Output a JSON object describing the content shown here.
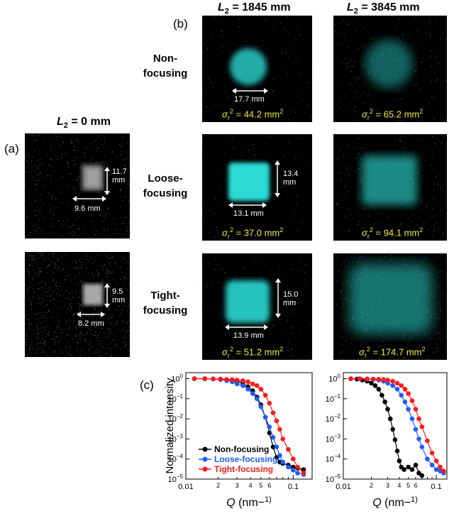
{
  "labels": {
    "a": "(a)",
    "b": "(b)",
    "c": "(c)"
  },
  "headers": {
    "l0": {
      "var": "L",
      "sub": "2",
      "rest": " = 0 mm"
    },
    "l1845": {
      "var": "L",
      "sub": "2",
      "rest": " = 1845 mm"
    },
    "l3845": {
      "var": "L",
      "sub": "2",
      "rest": " = 3845 mm"
    }
  },
  "rows": [
    {
      "line1": "Non-",
      "line2": "focusing"
    },
    {
      "line1": "Loose-",
      "line2": "focusing"
    },
    {
      "line1": "Tight-",
      "line2": "focusing"
    }
  ],
  "panel_a": {
    "loose": {
      "v1": "11.7",
      "v2": "mm",
      "h": "9.6 mm"
    },
    "tight": {
      "v1": "9.5",
      "v2": "mm",
      "h": "8.2 mm"
    }
  },
  "panel_b": {
    "non_1845": {
      "h": "17.7 mm",
      "sigma": "44.2 mm"
    },
    "non_3845": {
      "sigma": "65.2 mm"
    },
    "loose_1845": {
      "v1": "13.4",
      "v2": "mm",
      "h": "13.1 mm",
      "sigma": "37.0 mm"
    },
    "loose_3845": {
      "sigma": "94.1 mm"
    },
    "tight_1845": {
      "v1": "15.0",
      "v2": "mm",
      "h": "13.9 mm",
      "sigma": "51.2 mm"
    },
    "tight_3845": {
      "sigma": "174.7 mm"
    },
    "sigma_symbol": "σ",
    "sigma_sub": "r",
    "sigma_sup": "2",
    "sigma_eq": " = ",
    "sigma_unit_sup": "2"
  },
  "colors": {
    "beam_cyan": "#2fe6e0",
    "beam_white": "#e6e6e6",
    "sigma_text": "#f0ea3c",
    "non": "#000000",
    "loose": "#1f5cff",
    "tight": "#ff1a1a"
  },
  "chart_data": [
    {
      "type": "line",
      "panel": "left",
      "ylabel": "Normalized intensity",
      "xlabel": "Q (nm−1)",
      "xscale": "log",
      "yscale": "log",
      "xlim": [
        0.01,
        0.15
      ],
      "ylim": [
        1e-05,
        2
      ],
      "x_ticks": [
        "0.01",
        "2",
        "3",
        "4",
        "5",
        "6",
        "0.1"
      ],
      "y_ticks": [
        "10−5",
        "10−4",
        "10−3",
        "10−2",
        "10−1",
        "100"
      ],
      "series": [
        {
          "name": "Non-focusing",
          "color": "#000000",
          "x": [
            0.012,
            0.015,
            0.018,
            0.021,
            0.024,
            0.027,
            0.03,
            0.034,
            0.038,
            0.042,
            0.046,
            0.05,
            0.055,
            0.06,
            0.065,
            0.07,
            0.075,
            0.08,
            0.09,
            0.1,
            0.11,
            0.125
          ],
          "y": [
            1.0,
            1.0,
            0.98,
            0.95,
            0.9,
            0.85,
            0.75,
            0.6,
            0.4,
            0.25,
            0.12,
            0.05,
            0.012,
            0.002,
            0.0004,
            0.00012,
            7e-05,
            6e-05,
            5e-05,
            4e-05,
            3.5e-05,
            3e-05
          ]
        },
        {
          "name": "Loose-focusing",
          "color": "#1f5cff",
          "x": [
            0.012,
            0.015,
            0.018,
            0.021,
            0.024,
            0.027,
            0.03,
            0.034,
            0.038,
            0.042,
            0.046,
            0.05,
            0.055,
            0.06,
            0.065,
            0.07,
            0.075,
            0.08,
            0.09,
            0.1,
            0.11,
            0.125
          ],
          "y": [
            1.0,
            0.98,
            0.95,
            0.9,
            0.8,
            0.7,
            0.55,
            0.45,
            0.3,
            0.18,
            0.1,
            0.04,
            0.012,
            0.004,
            0.0012,
            0.0004,
            0.00015,
            7e-05,
            4e-05,
            2.8e-05,
            2e-05,
            1.7e-05
          ]
        },
        {
          "name": "Tight-focusing",
          "color": "#ff1a1a",
          "x": [
            0.012,
            0.015,
            0.018,
            0.021,
            0.024,
            0.027,
            0.03,
            0.034,
            0.038,
            0.042,
            0.046,
            0.05,
            0.055,
            0.06,
            0.065,
            0.07,
            0.075,
            0.08,
            0.09,
            0.1,
            0.11,
            0.125
          ],
          "y": [
            1.0,
            1.0,
            0.98,
            0.95,
            0.92,
            0.9,
            0.85,
            0.8,
            0.7,
            0.55,
            0.45,
            0.3,
            0.15,
            0.06,
            0.02,
            0.008,
            0.003,
            0.001,
            0.0003,
            0.0001,
            4e-05,
            2e-05
          ]
        }
      ]
    },
    {
      "type": "line",
      "panel": "right",
      "xlabel": "Q (nm−1)",
      "xscale": "log",
      "yscale": "log",
      "xlim": [
        0.01,
        0.13
      ],
      "ylim": [
        1e-05,
        2
      ],
      "x_ticks": [
        "0.01",
        "2",
        "3",
        "4",
        "5",
        "6",
        "0.1"
      ],
      "y_ticks": [
        "10−5",
        "10−4",
        "10−3",
        "10−2",
        "10−1",
        "100"
      ],
      "series": [
        {
          "name": "Non-focusing",
          "color": "#000000",
          "x": [
            0.012,
            0.014,
            0.016,
            0.018,
            0.02,
            0.022,
            0.024,
            0.026,
            0.028,
            0.03,
            0.032,
            0.034,
            0.036,
            0.038,
            0.04,
            0.042,
            0.045,
            0.05,
            0.055,
            0.06,
            0.065,
            0.07
          ],
          "y": [
            1.0,
            0.95,
            0.85,
            0.75,
            0.6,
            0.45,
            0.3,
            0.15,
            0.07,
            0.03,
            0.01,
            0.003,
            0.0009,
            0.00025,
            8e-05,
            4e-05,
            3e-05,
            4e-05,
            3e-05,
            5e-05,
            2e-05,
            1.5e-05
          ]
        },
        {
          "name": "Loose-focusing",
          "color": "#1f5cff",
          "x": [
            0.012,
            0.015,
            0.018,
            0.021,
            0.024,
            0.027,
            0.03,
            0.034,
            0.038,
            0.042,
            0.046,
            0.05,
            0.055,
            0.06,
            0.065,
            0.07,
            0.08,
            0.09,
            0.1,
            0.11,
            0.12
          ],
          "y": [
            1.0,
            0.98,
            0.95,
            0.9,
            0.85,
            0.75,
            0.6,
            0.45,
            0.3,
            0.15,
            0.07,
            0.03,
            0.01,
            0.003,
            0.001,
            0.0004,
            0.0001,
            5e-05,
            3e-05,
            2.5e-05,
            2e-05
          ]
        },
        {
          "name": "Tight-focusing",
          "color": "#ff1a1a",
          "x": [
            0.012,
            0.015,
            0.018,
            0.021,
            0.024,
            0.027,
            0.03,
            0.034,
            0.038,
            0.042,
            0.046,
            0.05,
            0.055,
            0.06,
            0.065,
            0.07,
            0.08,
            0.09,
            0.1,
            0.11,
            0.12
          ],
          "y": [
            1.0,
            1.0,
            0.98,
            0.96,
            0.94,
            0.9,
            0.85,
            0.75,
            0.6,
            0.45,
            0.3,
            0.18,
            0.08,
            0.03,
            0.01,
            0.004,
            0.0008,
            0.0002,
            8e-05,
            4e-05,
            2.5e-05
          ]
        }
      ]
    }
  ]
}
